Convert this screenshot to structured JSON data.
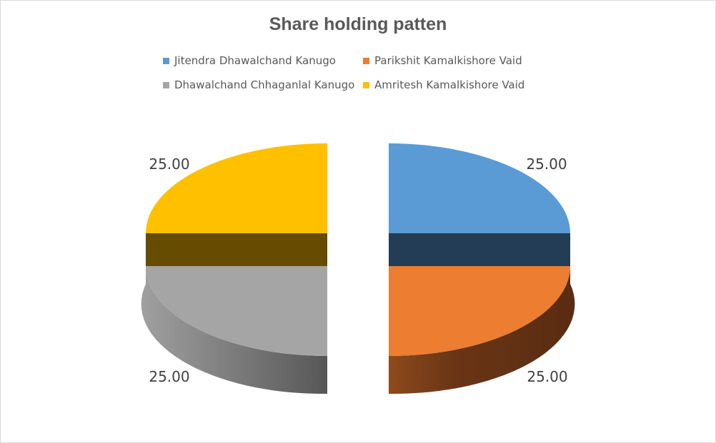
{
  "chart_data": {
    "type": "pie",
    "title": "Share holding patten",
    "legend_position": "top",
    "series": [
      {
        "name": "Jitendra Dhawalchand Kanugo",
        "value": 25.0,
        "label": "25.00",
        "color": "#5b9bd5"
      },
      {
        "name": "Parikshit Kamalkishore Vaid",
        "value": 25.0,
        "label": "25.00",
        "color": "#ed7d31"
      },
      {
        "name": "Dhawalchand Chhaganlal Kanugo",
        "value": 25.0,
        "label": "25.00",
        "color": "#a5a5a5"
      },
      {
        "name": "Amritesh Kamalkishore Vaid",
        "value": 25.0,
        "label": "25.00",
        "color": "#ffc000"
      }
    ]
  }
}
